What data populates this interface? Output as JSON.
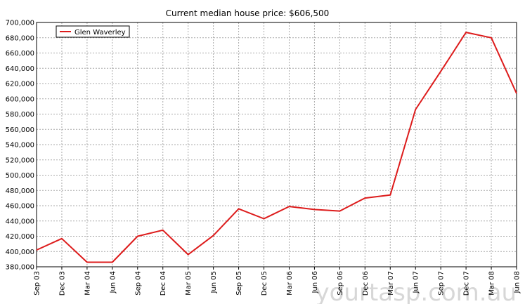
{
  "chart_data": {
    "type": "line",
    "title": "Current median house price: $606,500",
    "xlabel": "",
    "ylabel": "",
    "categories": [
      "Sep 03",
      "Dec 03",
      "Mar 04",
      "Jun 04",
      "Sep 04",
      "Dec 04",
      "Mar 05",
      "Jun 05",
      "Sep 05",
      "Dec 05",
      "Mar 06",
      "Jun 06",
      "Sep 06",
      "Dec 06",
      "Mar 07",
      "Jun 07",
      "Sep 07",
      "Dec 07",
      "Mar 08",
      "Jun 08"
    ],
    "series": [
      {
        "name": "Glen Waverley",
        "color": "#dd1c1c",
        "values": [
          402000,
          417000,
          386000,
          386000,
          420000,
          428000,
          396000,
          421000,
          456000,
          443000,
          459000,
          455000,
          453000,
          470000,
          474000,
          586000,
          636000,
          687000,
          680000,
          607000
        ]
      }
    ],
    "ylim": [
      380000,
      700000
    ],
    "yticks": [
      380000,
      400000,
      420000,
      440000,
      460000,
      480000,
      500000,
      520000,
      540000,
      560000,
      580000,
      600000,
      620000,
      640000,
      660000,
      680000,
      700000
    ],
    "ytick_labels": [
      "380,000",
      "400,000",
      "420,000",
      "440,000",
      "460,000",
      "480,000",
      "500,000",
      "520,000",
      "540,000",
      "560,000",
      "580,000",
      "600,000",
      "620,000",
      "640,000",
      "660,000",
      "680,000",
      "700,000"
    ],
    "grid": true,
    "legend": "top-left",
    "watermark": "yourtasp.com.au"
  }
}
